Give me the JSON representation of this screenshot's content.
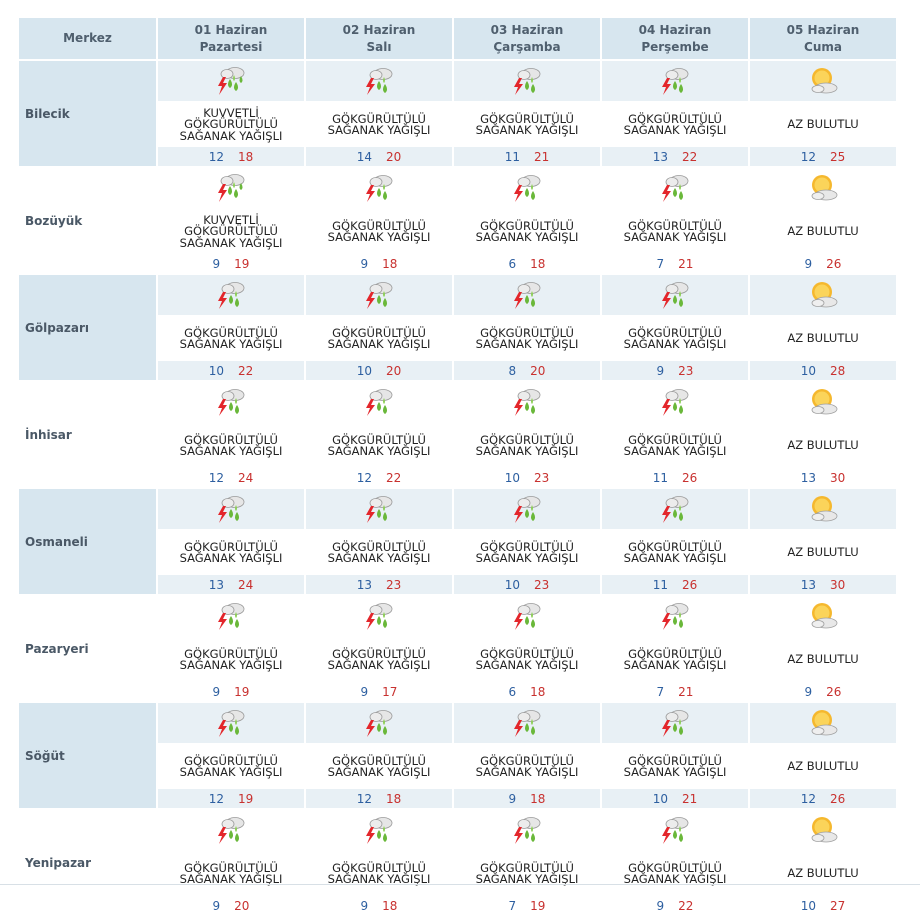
{
  "header": {
    "merkez": "Merkez",
    "days": [
      {
        "date": "01 Haziran",
        "weekday": "Pazartesi"
      },
      {
        "date": "02 Haziran",
        "weekday": "Salı"
      },
      {
        "date": "03 Haziran",
        "weekday": "Çarşamba"
      },
      {
        "date": "04 Haziran",
        "weekday": "Perşembe"
      },
      {
        "date": "05 Haziran",
        "weekday": "Cuma"
      }
    ]
  },
  "colors": {
    "min_temp": "#2d5fa0",
    "max_temp": "#c8312f",
    "header_bg": "#d7e6ef"
  },
  "rows": [
    {
      "city": "Bilecik",
      "days": [
        {
          "icon": "heavy-thunderstorm-icon",
          "desc": [
            "KUVVETLİ",
            "GÖKGÜRÜLTÜLÜ",
            "SAĞANAK YAĞIŞLI"
          ],
          "min": "12",
          "max": "18"
        },
        {
          "icon": "thunderstorm-icon",
          "desc": [
            "GÖKGÜRÜLTÜLÜ",
            "SAĞANAK YAĞIŞLI"
          ],
          "min": "14",
          "max": "20"
        },
        {
          "icon": "thunderstorm-icon",
          "desc": [
            "GÖKGÜRÜLTÜLÜ",
            "SAĞANAK YAĞIŞLI"
          ],
          "min": "11",
          "max": "21"
        },
        {
          "icon": "thunderstorm-icon",
          "desc": [
            "GÖKGÜRÜLTÜLÜ",
            "SAĞANAK YAĞIŞLI"
          ],
          "min": "13",
          "max": "22"
        },
        {
          "icon": "partly-cloudy-icon",
          "desc": [
            "AZ BULUTLU"
          ],
          "min": "12",
          "max": "25"
        }
      ]
    },
    {
      "city": "Bozüyük",
      "days": [
        {
          "icon": "heavy-thunderstorm-icon",
          "desc": [
            "KUVVETLİ",
            "GÖKGÜRÜLTÜLÜ",
            "SAĞANAK YAĞIŞLI"
          ],
          "min": "9",
          "max": "19"
        },
        {
          "icon": "thunderstorm-icon",
          "desc": [
            "GÖKGÜRÜLTÜLÜ",
            "SAĞANAK YAĞIŞLI"
          ],
          "min": "9",
          "max": "18"
        },
        {
          "icon": "thunderstorm-icon",
          "desc": [
            "GÖKGÜRÜLTÜLÜ",
            "SAĞANAK YAĞIŞLI"
          ],
          "min": "6",
          "max": "18"
        },
        {
          "icon": "thunderstorm-icon",
          "desc": [
            "GÖKGÜRÜLTÜLÜ",
            "SAĞANAK YAĞIŞLI"
          ],
          "min": "7",
          "max": "21"
        },
        {
          "icon": "partly-cloudy-icon",
          "desc": [
            "AZ BULUTLU"
          ],
          "min": "9",
          "max": "26"
        }
      ]
    },
    {
      "city": "Gölpazarı",
      "days": [
        {
          "icon": "thunderstorm-icon",
          "desc": [
            "GÖKGÜRÜLTÜLÜ",
            "SAĞANAK YAĞIŞLI"
          ],
          "min": "10",
          "max": "22"
        },
        {
          "icon": "thunderstorm-icon",
          "desc": [
            "GÖKGÜRÜLTÜLÜ",
            "SAĞANAK YAĞIŞLI"
          ],
          "min": "10",
          "max": "20"
        },
        {
          "icon": "thunderstorm-icon",
          "desc": [
            "GÖKGÜRÜLTÜLÜ",
            "SAĞANAK YAĞIŞLI"
          ],
          "min": "8",
          "max": "20"
        },
        {
          "icon": "thunderstorm-icon",
          "desc": [
            "GÖKGÜRÜLTÜLÜ",
            "SAĞANAK YAĞIŞLI"
          ],
          "min": "9",
          "max": "23"
        },
        {
          "icon": "partly-cloudy-icon",
          "desc": [
            "AZ BULUTLU"
          ],
          "min": "10",
          "max": "28"
        }
      ]
    },
    {
      "city": "İnhisar",
      "days": [
        {
          "icon": "thunderstorm-icon",
          "desc": [
            "GÖKGÜRÜLTÜLÜ",
            "SAĞANAK YAĞIŞLI"
          ],
          "min": "12",
          "max": "24"
        },
        {
          "icon": "thunderstorm-icon",
          "desc": [
            "GÖKGÜRÜLTÜLÜ",
            "SAĞANAK YAĞIŞLI"
          ],
          "min": "12",
          "max": "22"
        },
        {
          "icon": "thunderstorm-icon",
          "desc": [
            "GÖKGÜRÜLTÜLÜ",
            "SAĞANAK YAĞIŞLI"
          ],
          "min": "10",
          "max": "23"
        },
        {
          "icon": "thunderstorm-icon",
          "desc": [
            "GÖKGÜRÜLTÜLÜ",
            "SAĞANAK YAĞIŞLI"
          ],
          "min": "11",
          "max": "26"
        },
        {
          "icon": "partly-cloudy-icon",
          "desc": [
            "AZ BULUTLU"
          ],
          "min": "13",
          "max": "30"
        }
      ]
    },
    {
      "city": "Osmaneli",
      "days": [
        {
          "icon": "thunderstorm-icon",
          "desc": [
            "GÖKGÜRÜLTÜLÜ",
            "SAĞANAK YAĞIŞLI"
          ],
          "min": "13",
          "max": "24"
        },
        {
          "icon": "thunderstorm-icon",
          "desc": [
            "GÖKGÜRÜLTÜLÜ",
            "SAĞANAK YAĞIŞLI"
          ],
          "min": "13",
          "max": "23"
        },
        {
          "icon": "thunderstorm-icon",
          "desc": [
            "GÖKGÜRÜLTÜLÜ",
            "SAĞANAK YAĞIŞLI"
          ],
          "min": "10",
          "max": "23"
        },
        {
          "icon": "thunderstorm-icon",
          "desc": [
            "GÖKGÜRÜLTÜLÜ",
            "SAĞANAK YAĞIŞLI"
          ],
          "min": "11",
          "max": "26"
        },
        {
          "icon": "partly-cloudy-icon",
          "desc": [
            "AZ BULUTLU"
          ],
          "min": "13",
          "max": "30"
        }
      ]
    },
    {
      "city": "Pazaryeri",
      "days": [
        {
          "icon": "thunderstorm-icon",
          "desc": [
            "GÖKGÜRÜLTÜLÜ",
            "SAĞANAK YAĞIŞLI"
          ],
          "min": "9",
          "max": "19"
        },
        {
          "icon": "thunderstorm-icon",
          "desc": [
            "GÖKGÜRÜLTÜLÜ",
            "SAĞANAK YAĞIŞLI"
          ],
          "min": "9",
          "max": "17"
        },
        {
          "icon": "thunderstorm-icon",
          "desc": [
            "GÖKGÜRÜLTÜLÜ",
            "SAĞANAK YAĞIŞLI"
          ],
          "min": "6",
          "max": "18"
        },
        {
          "icon": "thunderstorm-icon",
          "desc": [
            "GÖKGÜRÜLTÜLÜ",
            "SAĞANAK YAĞIŞLI"
          ],
          "min": "7",
          "max": "21"
        },
        {
          "icon": "partly-cloudy-icon",
          "desc": [
            "AZ BULUTLU"
          ],
          "min": "9",
          "max": "26"
        }
      ]
    },
    {
      "city": "Söğüt",
      "days": [
        {
          "icon": "thunderstorm-icon",
          "desc": [
            "GÖKGÜRÜLTÜLÜ",
            "SAĞANAK YAĞIŞLI"
          ],
          "min": "12",
          "max": "19"
        },
        {
          "icon": "thunderstorm-icon",
          "desc": [
            "GÖKGÜRÜLTÜLÜ",
            "SAĞANAK YAĞIŞLI"
          ],
          "min": "12",
          "max": "18"
        },
        {
          "icon": "thunderstorm-icon",
          "desc": [
            "GÖKGÜRÜLTÜLÜ",
            "SAĞANAK YAĞIŞLI"
          ],
          "min": "9",
          "max": "18"
        },
        {
          "icon": "thunderstorm-icon",
          "desc": [
            "GÖKGÜRÜLTÜLÜ",
            "SAĞANAK YAĞIŞLI"
          ],
          "min": "10",
          "max": "21"
        },
        {
          "icon": "partly-cloudy-icon",
          "desc": [
            "AZ BULUTLU"
          ],
          "min": "12",
          "max": "26"
        }
      ]
    },
    {
      "city": "Yenipazar",
      "days": [
        {
          "icon": "thunderstorm-icon",
          "desc": [
            "GÖKGÜRÜLTÜLÜ",
            "SAĞANAK YAĞIŞLI"
          ],
          "min": "9",
          "max": "20"
        },
        {
          "icon": "thunderstorm-icon",
          "desc": [
            "GÖKGÜRÜLTÜLÜ",
            "SAĞANAK YAĞIŞLI"
          ],
          "min": "9",
          "max": "18"
        },
        {
          "icon": "thunderstorm-icon",
          "desc": [
            "GÖKGÜRÜLTÜLÜ",
            "SAĞANAK YAĞIŞLI"
          ],
          "min": "7",
          "max": "19"
        },
        {
          "icon": "thunderstorm-icon",
          "desc": [
            "GÖKGÜRÜLTÜLÜ",
            "SAĞANAK YAĞIŞLI"
          ],
          "min": "9",
          "max": "22"
        },
        {
          "icon": "partly-cloudy-icon",
          "desc": [
            "AZ BULUTLU"
          ],
          "min": "10",
          "max": "27"
        }
      ]
    }
  ]
}
